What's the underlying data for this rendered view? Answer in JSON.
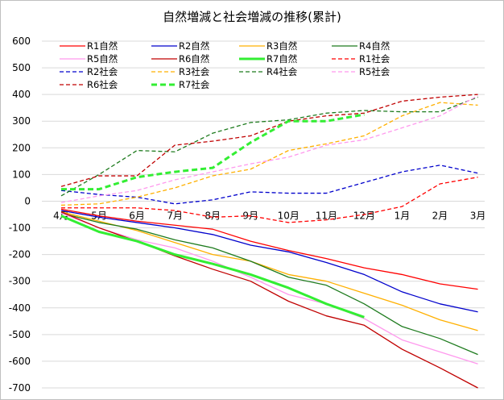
{
  "chart_data": {
    "type": "line",
    "title": "自然増減と社会増減の推移(累計)",
    "xlabel": "",
    "ylabel": "",
    "categories": [
      "4月",
      "5月",
      "6月",
      "7月",
      "8月",
      "9月",
      "10月",
      "11月",
      "12月",
      "1月",
      "2月",
      "3月"
    ],
    "ylim": [
      -700,
      600
    ],
    "ytick_step": 100,
    "yticks": [
      "600",
      "500",
      "400",
      "300",
      "200",
      "100",
      "0",
      "-100",
      "-200",
      "-300",
      "-400",
      "-500",
      "-600",
      "-700"
    ],
    "grid": true,
    "legend_position": "top",
    "series": [
      {
        "name": "R1自然",
        "color": "#ff0000",
        "dash": "solid",
        "width": 1.3,
        "values": [
          -30,
          -55,
          -75,
          -90,
          -105,
          -150,
          -185,
          -215,
          -250,
          -275,
          -310,
          -330
        ]
      },
      {
        "name": "R2自然",
        "color": "#0000cc",
        "dash": "solid",
        "width": 1.3,
        "values": [
          -35,
          -60,
          -80,
          -100,
          -125,
          -165,
          -190,
          -230,
          -275,
          -340,
          -385,
          -415
        ]
      },
      {
        "name": "R3自然",
        "color": "#ffb000",
        "dash": "solid",
        "width": 1.3,
        "values": [
          -40,
          -75,
          -110,
          -155,
          -200,
          -225,
          -275,
          -300,
          -345,
          -390,
          -445,
          -485
        ]
      },
      {
        "name": "R4自然",
        "color": "#1e7b1e",
        "dash": "solid",
        "width": 1.3,
        "values": [
          -45,
          -80,
          -105,
          -145,
          -175,
          -225,
          -285,
          -315,
          -385,
          -470,
          -515,
          -575
        ]
      },
      {
        "name": "R5自然",
        "color": "#ff99ee",
        "dash": "solid",
        "width": 1.3,
        "values": [
          -45,
          -100,
          -145,
          -175,
          -225,
          -285,
          -350,
          -385,
          -440,
          -520,
          -565,
          -610
        ]
      },
      {
        "name": "R6自然",
        "color": "#c00000",
        "dash": "solid",
        "width": 1.3,
        "values": [
          -40,
          -100,
          -150,
          -205,
          -255,
          -300,
          -375,
          -430,
          -465,
          -555,
          -625,
          -700
        ]
      },
      {
        "name": "R7自然",
        "color": "#33ee33",
        "dash": "solid",
        "width": 3,
        "values": [
          -55,
          -115,
          -150,
          -200,
          -235,
          -275,
          -325,
          -385,
          -435,
          null,
          null,
          null
        ]
      },
      {
        "name": "R1社会",
        "color": "#ff0000",
        "dash": "dash",
        "width": 1.3,
        "values": [
          -25,
          -25,
          -25,
          -35,
          -60,
          -55,
          -80,
          -70,
          -50,
          -20,
          65,
          90
        ]
      },
      {
        "name": "R2社会",
        "color": "#0000cc",
        "dash": "dash",
        "width": 1.3,
        "values": [
          40,
          25,
          15,
          -10,
          5,
          35,
          30,
          30,
          70,
          110,
          135,
          105
        ]
      },
      {
        "name": "R3社会",
        "color": "#ffb000",
        "dash": "dash",
        "width": 1.3,
        "values": [
          -15,
          -10,
          15,
          50,
          95,
          120,
          190,
          215,
          245,
          320,
          370,
          360
        ]
      },
      {
        "name": "R4社会",
        "color": "#1e7b1e",
        "dash": "dash",
        "width": 1.3,
        "values": [
          20,
          100,
          190,
          185,
          255,
          295,
          305,
          330,
          340,
          335,
          335,
          390
        ]
      },
      {
        "name": "R5社会",
        "color": "#ff99ee",
        "dash": "dash",
        "width": 1.3,
        "values": [
          -5,
          20,
          40,
          80,
          110,
          140,
          165,
          210,
          230,
          275,
          320,
          395
        ]
      },
      {
        "name": "R6社会",
        "color": "#c00000",
        "dash": "dash",
        "width": 1.3,
        "values": [
          55,
          95,
          95,
          210,
          225,
          245,
          300,
          320,
          330,
          375,
          390,
          400
        ]
      },
      {
        "name": "R7社会",
        "color": "#33ee33",
        "dash": "dash",
        "width": 3,
        "values": [
          45,
          45,
          90,
          110,
          125,
          220,
          300,
          300,
          325,
          null,
          null,
          null
        ]
      }
    ]
  }
}
